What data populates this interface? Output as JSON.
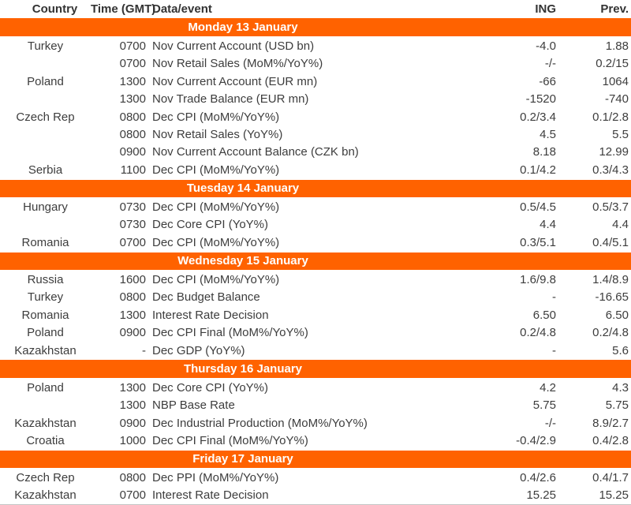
{
  "colors": {
    "accent": "#FF6200",
    "band_text": "#FFFFFF",
    "body_text": "#3D3D3D"
  },
  "table": {
    "headers": {
      "country": "Country",
      "time": "Time (GMT)",
      "event": "Data/event",
      "ing": "ING",
      "prev": "Prev."
    },
    "sections": [
      {
        "day": "Monday 13 January",
        "rows": [
          {
            "country": "Turkey",
            "time": "0700",
            "event": "Nov Current Account (USD bn)",
            "ing": "-4.0",
            "prev": "1.88"
          },
          {
            "country": "",
            "time": "0700",
            "event": "Nov Retail Sales (MoM%/YoY%)",
            "ing": "-/-",
            "prev": "0.2/15"
          },
          {
            "country": "Poland",
            "time": "1300",
            "event": "Nov Current Account (EUR mn)",
            "ing": "-66",
            "prev": "1064"
          },
          {
            "country": "",
            "time": "1300",
            "event": "Nov Trade Balance (EUR mn)",
            "ing": "-1520",
            "prev": "-740"
          },
          {
            "country": "Czech Rep",
            "time": "0800",
            "event": "Dec CPI (MoM%/YoY%)",
            "ing": "0.2/3.4",
            "prev": "0.1/2.8"
          },
          {
            "country": "",
            "time": "0800",
            "event": "Nov Retail Sales (YoY%)",
            "ing": "4.5",
            "prev": "5.5"
          },
          {
            "country": "",
            "time": "0900",
            "event": "Nov Current Account Balance (CZK bn)",
            "ing": "8.18",
            "prev": "12.99"
          },
          {
            "country": "Serbia",
            "time": "1100",
            "event": "Dec CPI (MoM%/YoY%)",
            "ing": "0.1/4.2",
            "prev": "0.3/4.3"
          }
        ]
      },
      {
        "day": "Tuesday 14 January",
        "rows": [
          {
            "country": "Hungary",
            "time": "0730",
            "event": "Dec CPI (MoM%/YoY%)",
            "ing": "0.5/4.5",
            "prev": "0.5/3.7"
          },
          {
            "country": "",
            "time": "0730",
            "event": "Dec Core CPI (YoY%)",
            "ing": "4.4",
            "prev": "4.4"
          },
          {
            "country": "Romania",
            "time": "0700",
            "event": "Dec CPI (MoM%/YoY%)",
            "ing": "0.3/5.1",
            "prev": "0.4/5.1"
          }
        ]
      },
      {
        "day": "Wednesday 15 January",
        "rows": [
          {
            "country": "Russia",
            "time": "1600",
            "event": "Dec CPI (MoM%/YoY%)",
            "ing": "1.6/9.8",
            "prev": "1.4/8.9"
          },
          {
            "country": "Turkey",
            "time": "0800",
            "event": "Dec Budget Balance",
            "ing": "-",
            "prev": "-16.65"
          },
          {
            "country": "Romania",
            "time": "1300",
            "event": "Interest Rate Decision",
            "ing": "6.50",
            "prev": "6.50"
          },
          {
            "country": "Poland",
            "time": "0900",
            "event": "Dec CPI Final (MoM%/YoY%)",
            "ing": "0.2/4.8",
            "prev": "0.2/4.8"
          },
          {
            "country": "Kazakhstan",
            "time": "-",
            "event": "Dec GDP (YoY%)",
            "ing": "-",
            "prev": "5.6"
          }
        ]
      },
      {
        "day": "Thursday 16 January",
        "rows": [
          {
            "country": "Poland",
            "time": "1300",
            "event": "Dec Core CPI (YoY%)",
            "ing": "4.2",
            "prev": "4.3"
          },
          {
            "country": "",
            "time": "1300",
            "event": "NBP Base Rate",
            "ing": "5.75",
            "prev": "5.75"
          },
          {
            "country": "Kazakhstan",
            "time": "0900",
            "event": "Dec Industrial Production (MoM%/YoY%)",
            "ing": "-/-",
            "prev": "8.9/2.7"
          },
          {
            "country": "Croatia",
            "time": "1000",
            "event": "Dec CPI Final (MoM%/YoY%)",
            "ing": "-0.4/2.9",
            "prev": "0.4/2.8"
          }
        ]
      },
      {
        "day": "Friday 17 January",
        "rows": [
          {
            "country": "Czech Rep",
            "time": "0800",
            "event": "Dec PPI (MoM%/YoY%)",
            "ing": "0.4/2.6",
            "prev": "0.4/1.7"
          },
          {
            "country": "Kazakhstan",
            "time": "0700",
            "event": "Interest Rate Decision",
            "ing": "15.25",
            "prev": "15.25"
          }
        ]
      }
    ]
  }
}
